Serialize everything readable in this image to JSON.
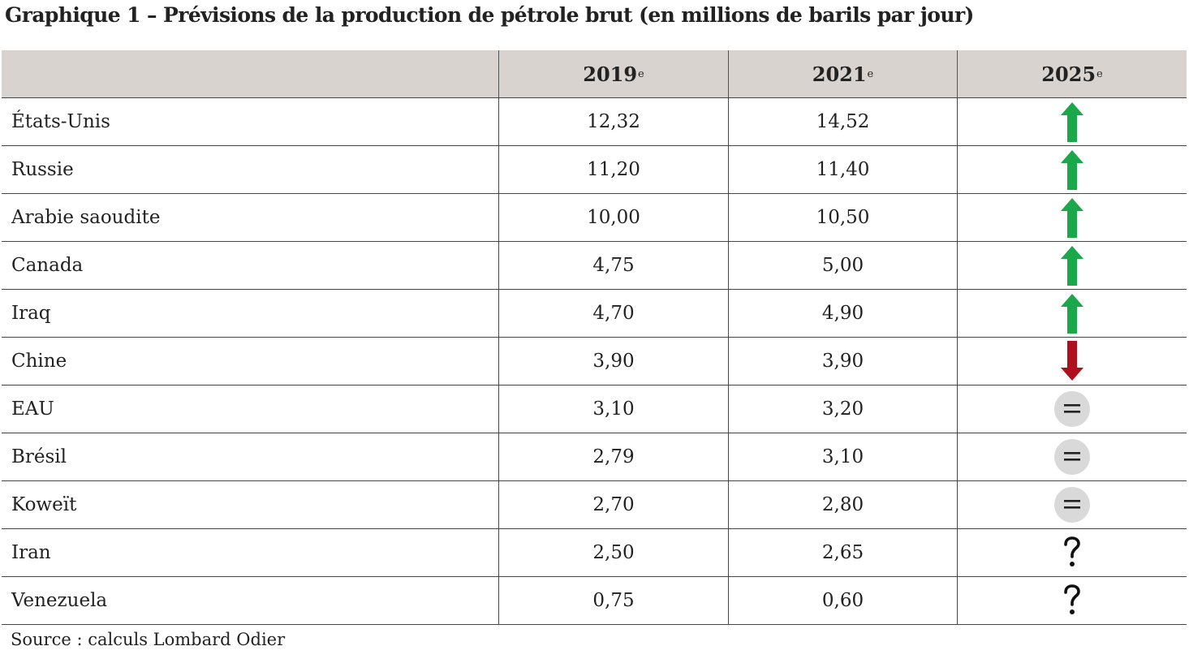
{
  "title": "Graphique 1 – Prévisions de la production de pétrole brut (en millions de barils par jour)",
  "source": "Source : calculs Lombard Odier",
  "chart_data": {
    "type": "table",
    "columns": [
      {
        "label": "2019",
        "superscript": "e"
      },
      {
        "label": "2021",
        "superscript": "e"
      },
      {
        "label": "2025",
        "superscript": "e"
      }
    ],
    "rows": [
      {
        "country": "États-Unis",
        "v2019": "12,32",
        "v2021": "14,52",
        "trend2025": "up"
      },
      {
        "country": "Russie",
        "v2019": "11,20",
        "v2021": "11,40",
        "trend2025": "up"
      },
      {
        "country": "Arabie saoudite",
        "v2019": "10,00",
        "v2021": "10,50",
        "trend2025": "up"
      },
      {
        "country": "Canada",
        "v2019": "4,75",
        "v2021": "5,00",
        "trend2025": "up"
      },
      {
        "country": "Iraq",
        "v2019": "4,70",
        "v2021": "4,90",
        "trend2025": "up"
      },
      {
        "country": "Chine",
        "v2019": "3,90",
        "v2021": "3,90",
        "trend2025": "down"
      },
      {
        "country": "EAU",
        "v2019": "3,10",
        "v2021": "3,20",
        "trend2025": "equal"
      },
      {
        "country": "Brésil",
        "v2019": "2,79",
        "v2021": "3,10",
        "trend2025": "equal"
      },
      {
        "country": "Koweït",
        "v2019": "2,70",
        "v2021": "2,80",
        "trend2025": "equal"
      },
      {
        "country": "Iran",
        "v2019": "2,50",
        "v2021": "2,65",
        "trend2025": "unknown"
      },
      {
        "country": "Venezuela",
        "v2019": "0,75",
        "v2021": "0,60",
        "trend2025": "unknown"
      }
    ],
    "colors": {
      "header_background": "#d8d3cf",
      "up_arrow": "#1aa84a",
      "down_arrow": "#b0101e",
      "equal_badge": "#d9d9d9"
    },
    "icons": {
      "up": "up-arrow-icon",
      "down": "down-arrow-icon",
      "equal": "equal-icon",
      "unknown": "question-mark-icon"
    }
  }
}
